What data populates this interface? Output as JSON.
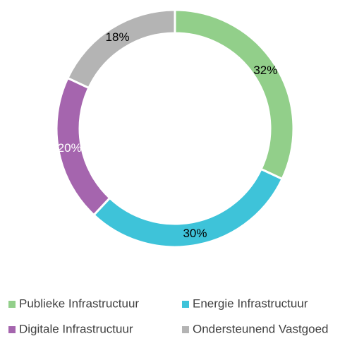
{
  "chart_data": {
    "type": "donut",
    "categories": [
      "Publieke Infrastructuur",
      "Energie Infrastructuur",
      "Digitale Infrastructuur",
      "Ondersteunend Vastgoed"
    ],
    "values": [
      32,
      30,
      20,
      18
    ],
    "value_labels": [
      "32%",
      "30%",
      "20%",
      "18%"
    ],
    "colors": [
      "#92cf8a",
      "#3ec3d9",
      "#a565ae",
      "#b4b4b4"
    ],
    "label_colors": [
      "#000000",
      "#000000",
      "#ffffff",
      "#000000"
    ],
    "legend": "bottom"
  }
}
